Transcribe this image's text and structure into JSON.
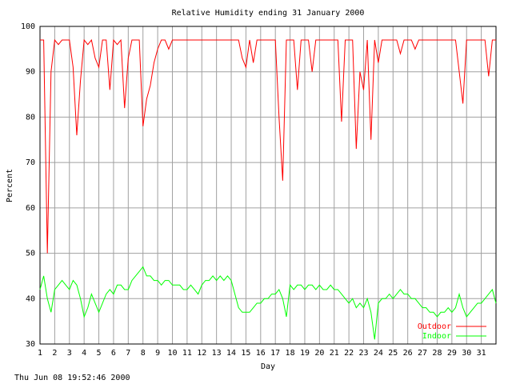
{
  "chart_data": {
    "type": "line",
    "title": "Relative Humidity ending 31 January 2000",
    "x_label": "Day",
    "y_label": "Percent",
    "footer": "Thu Jun 08 19:52:46 2000",
    "xlim": [
      1,
      32
    ],
    "ylim": [
      30,
      100
    ],
    "xticks": [
      1,
      2,
      3,
      4,
      5,
      6,
      7,
      8,
      9,
      10,
      11,
      12,
      13,
      14,
      15,
      16,
      17,
      18,
      19,
      20,
      21,
      22,
      23,
      24,
      25,
      26,
      27,
      28,
      29,
      30,
      31
    ],
    "yticks": [
      30,
      40,
      50,
      60,
      70,
      80,
      90,
      100
    ],
    "grid": true,
    "legend": "lower right",
    "x": [
      1,
      1.25,
      1.5,
      1.75,
      2,
      2.25,
      2.5,
      2.75,
      3,
      3.25,
      3.5,
      3.75,
      4,
      4.25,
      4.5,
      4.75,
      5,
      5.25,
      5.5,
      5.75,
      6,
      6.25,
      6.5,
      6.75,
      7,
      7.25,
      7.5,
      7.75,
      8,
      8.25,
      8.5,
      8.75,
      9,
      9.25,
      9.5,
      9.75,
      10,
      10.25,
      10.5,
      10.75,
      11,
      11.25,
      11.5,
      11.75,
      12,
      12.25,
      12.5,
      12.75,
      13,
      13.25,
      13.5,
      13.75,
      14,
      14.25,
      14.5,
      14.75,
      15,
      15.25,
      15.5,
      15.75,
      16,
      16.25,
      16.5,
      16.75,
      17,
      17.25,
      17.5,
      17.75,
      18,
      18.25,
      18.5,
      18.75,
      19,
      19.25,
      19.5,
      19.75,
      20,
      20.25,
      20.5,
      20.75,
      21,
      21.25,
      21.5,
      21.75,
      22,
      22.25,
      22.5,
      22.75,
      23,
      23.25,
      23.5,
      23.75,
      24,
      24.25,
      24.5,
      24.75,
      25,
      25.25,
      25.5,
      25.75,
      26,
      26.25,
      26.5,
      26.75,
      27,
      27.25,
      27.5,
      27.75,
      28,
      28.25,
      28.5,
      28.75,
      29,
      29.25,
      29.5,
      29.75,
      30,
      30.25,
      30.5,
      30.75,
      31,
      31.25,
      31.5,
      31.75,
      32
    ],
    "series": [
      {
        "name": "Outdoor",
        "color": "#ff0000",
        "values": [
          97,
          97,
          50,
          90,
          97,
          96,
          97,
          97,
          97,
          91,
          76,
          88,
          97,
          96,
          97,
          93,
          91,
          97,
          97,
          86,
          97,
          96,
          97,
          82,
          93,
          97,
          97,
          97,
          78,
          84,
          87,
          92,
          95,
          97,
          97,
          95,
          97,
          97,
          97,
          97,
          97,
          97,
          97,
          97,
          97,
          97,
          97,
          97,
          97,
          97,
          97,
          97,
          97,
          97,
          97,
          93,
          91,
          97,
          92,
          97,
          97,
          97,
          97,
          97,
          97,
          80,
          66,
          97,
          97,
          97,
          86,
          97,
          97,
          97,
          90,
          97,
          97,
          97,
          97,
          97,
          97,
          97,
          79,
          97,
          97,
          97,
          73,
          90,
          86,
          97,
          75,
          97,
          92,
          97,
          97,
          97,
          97,
          97,
          94,
          97,
          97,
          97,
          95,
          97,
          97,
          97,
          97,
          97,
          97,
          97,
          97,
          97,
          97,
          97,
          90,
          83,
          97,
          97,
          97,
          97,
          97,
          97,
          89,
          97,
          97
        ]
      },
      {
        "name": "Indoor",
        "color": "#00ff00",
        "values": [
          42,
          45,
          40,
          37,
          42,
          43,
          44,
          43,
          42,
          44,
          43,
          40,
          36,
          38,
          41,
          39,
          37,
          39,
          41,
          42,
          41,
          43,
          43,
          42,
          42,
          44,
          45,
          46,
          47,
          45,
          45,
          44,
          44,
          43,
          44,
          44,
          43,
          43,
          43,
          42,
          42,
          43,
          42,
          41,
          43,
          44,
          44,
          45,
          44,
          45,
          44,
          45,
          44,
          41,
          38,
          37,
          37,
          37,
          38,
          39,
          39,
          40,
          40,
          41,
          41,
          42,
          40,
          36,
          43,
          42,
          43,
          43,
          42,
          43,
          43,
          42,
          43,
          42,
          42,
          43,
          42,
          42,
          41,
          40,
          39,
          40,
          38,
          39,
          38,
          40,
          37,
          31,
          39,
          40,
          40,
          41,
          40,
          41,
          42,
          41,
          41,
          40,
          40,
          39,
          38,
          38,
          37,
          37,
          36,
          37,
          37,
          38,
          37,
          38,
          41,
          38,
          36,
          37,
          38,
          39,
          39,
          40,
          41,
          42,
          39
        ]
      }
    ]
  }
}
